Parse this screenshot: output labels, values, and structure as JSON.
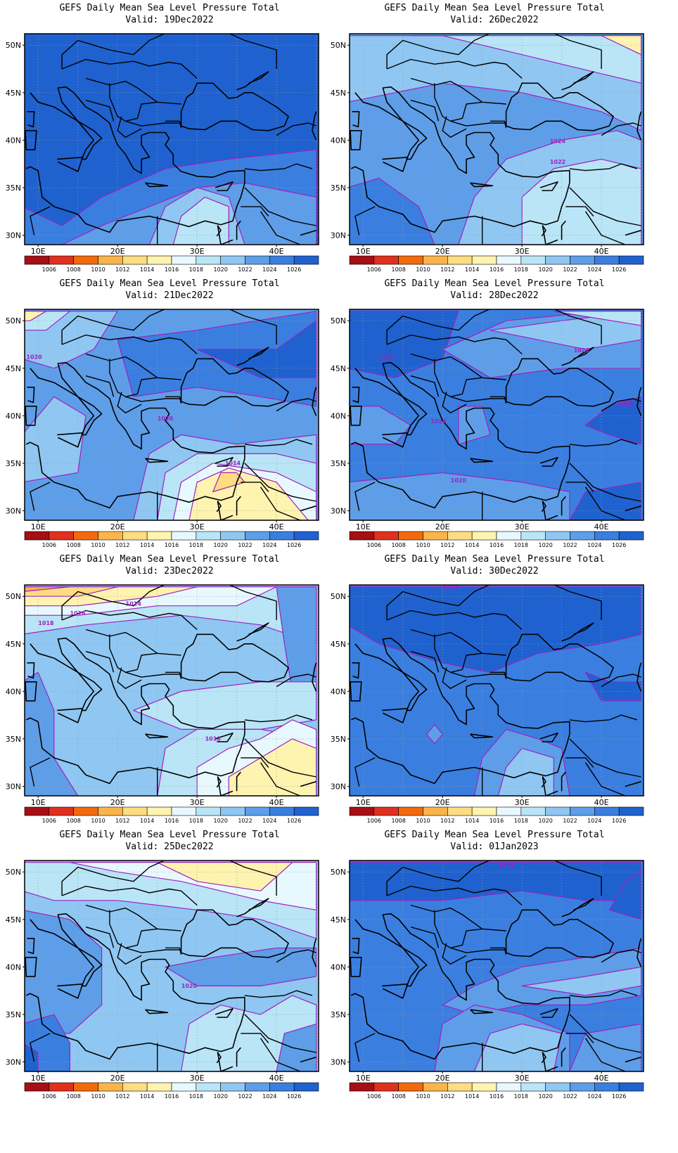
{
  "panels": [
    {
      "title": "GEFS Daily Mean Sea Level Pressure Total",
      "valid": "Valid: 19Dec2022",
      "contour_labels": []
    },
    {
      "title": "GEFS Daily Mean Sea Level Pressure Total",
      "valid": "Valid: 26Dec2022",
      "contour_labels": [
        "1024",
        "1022"
      ]
    },
    {
      "title": "GEFS Daily Mean Sea Level Pressure Total",
      "valid": "Valid: 21Dec2022",
      "contour_labels": [
        "1020",
        "1020",
        "1014"
      ]
    },
    {
      "title": "GEFS Daily Mean Sea Level Pressure Total",
      "valid": "Valid: 28Dec2022",
      "contour_labels": [
        "1026",
        "1020",
        "1026",
        "1024",
        "1020"
      ]
    },
    {
      "title": "GEFS Daily Mean Sea Level Pressure Total",
      "valid": "Valid: 23Dec2022",
      "contour_labels": [
        "1014",
        "1016",
        "1018",
        "1018"
      ]
    },
    {
      "title": "GEFS Daily Mean Sea Level Pressure Total",
      "valid": "Valid: 30Dec2022",
      "contour_labels": [
        "1026"
      ]
    },
    {
      "title": "GEFS Daily Mean Sea Level Pressure Total",
      "valid": "Valid: 25Dec2022",
      "contour_labels": [
        "1020"
      ]
    },
    {
      "title": "GEFS Daily Mean Sea Level Pressure Total",
      "valid": "Valid: 01Jan2023",
      "contour_labels": [
        "1024"
      ]
    }
  ],
  "axes": {
    "lat_labels": [
      "50N",
      "45N",
      "40N",
      "35N",
      "30N"
    ],
    "lon_labels": [
      "10E",
      "20E",
      "30E",
      "40E"
    ]
  },
  "colorbar": {
    "labels": [
      "1006",
      "1008",
      "1010",
      "1012",
      "1014",
      "1016",
      "1018",
      "1020",
      "1022",
      "1024",
      "1026"
    ],
    "colors": [
      "#a50f15",
      "#e0301e",
      "#f26a0c",
      "#fbb44a",
      "#fddc82",
      "#fff3b0",
      "#e8f8ff",
      "#b9e5f7",
      "#8fc7f2",
      "#5e9ee8",
      "#3a7fe0",
      "#1f62cf"
    ]
  },
  "coast_color": "#000000",
  "isobar_color": "#a020c0"
}
